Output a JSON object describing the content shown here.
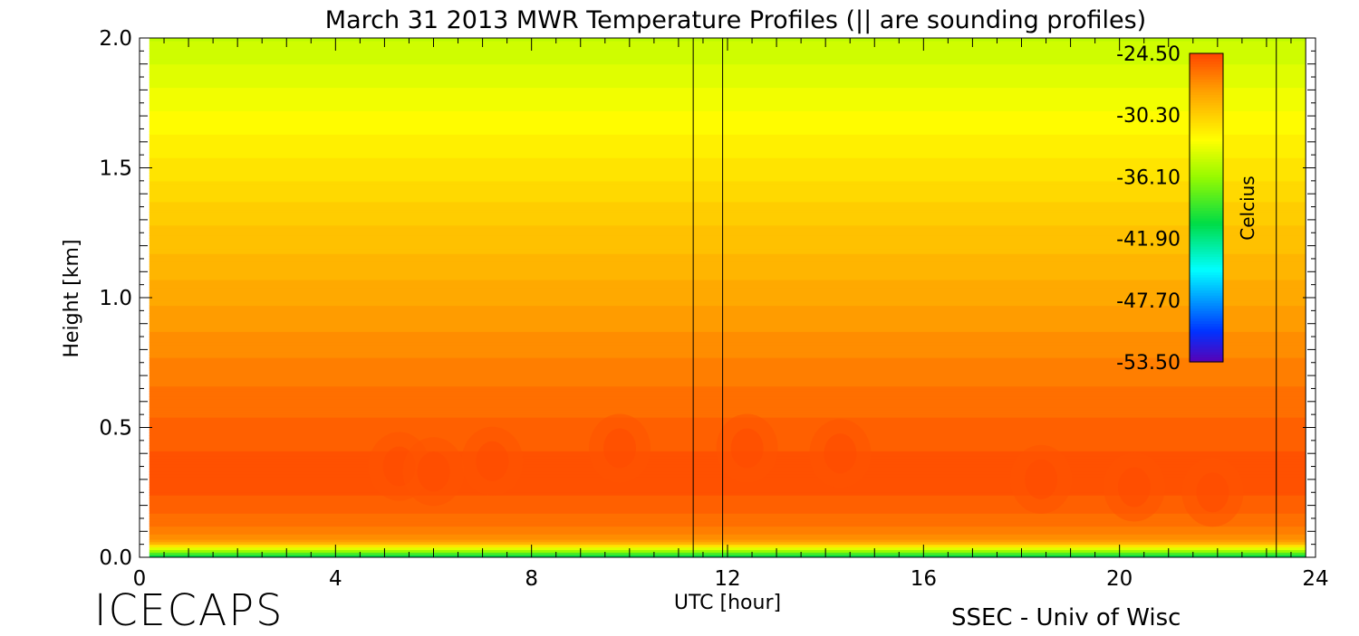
{
  "chart_data": {
    "type": "heatmap",
    "title": "March 31 2013 MWR Temperature Profiles (|| are sounding profiles)",
    "xlabel": "UTC [hour]",
    "ylabel": "Height [km]",
    "xlim": [
      0,
      24
    ],
    "ylim": [
      0.0,
      2.0
    ],
    "x_ticks": [
      "0",
      "4",
      "8",
      "12",
      "16",
      "20",
      "24"
    ],
    "y_ticks": [
      "0.0",
      "0.5",
      "1.0",
      "1.5",
      "2.0"
    ],
    "colorbar": {
      "label": "Celcius",
      "tick_labels": [
        "-24.50",
        "-30.30",
        "-36.10",
        "-41.90",
        "-47.70",
        "-53.50"
      ],
      "range": [
        -53.5,
        -24.5
      ]
    },
    "sounding_times_hour": [
      11.3,
      11.9,
      23.2,
      23.8
    ],
    "data_coverage_hour": [
      0.2,
      23.8
    ],
    "profile": {
      "height_km": [
        0.0,
        0.03,
        0.06,
        0.1,
        0.2,
        0.3,
        0.4,
        0.5,
        0.7,
        1.0,
        1.3,
        1.6,
        2.0
      ],
      "temperature_c": [
        -41.9,
        -34.5,
        -28.0,
        -26.6,
        -25.4,
        -25.0,
        -25.2,
        -25.6,
        -26.6,
        -28.3,
        -30.0,
        -32.0,
        -34.6
      ]
    },
    "warm_cores": [
      {
        "hour": 5.3,
        "height_km": 0.35
      },
      {
        "hour": 6.0,
        "height_km": 0.33
      },
      {
        "hour": 7.2,
        "height_km": 0.37
      },
      {
        "hour": 9.8,
        "height_km": 0.42
      },
      {
        "hour": 12.4,
        "height_km": 0.42
      },
      {
        "hour": 14.3,
        "height_km": 0.4
      },
      {
        "hour": 18.4,
        "height_km": 0.3
      },
      {
        "hour": 20.3,
        "height_km": 0.27
      },
      {
        "hour": 21.9,
        "height_km": 0.25
      }
    ]
  },
  "branding": {
    "project": "ICECAPS",
    "credit": "SSEC - Univ of Wisc"
  }
}
